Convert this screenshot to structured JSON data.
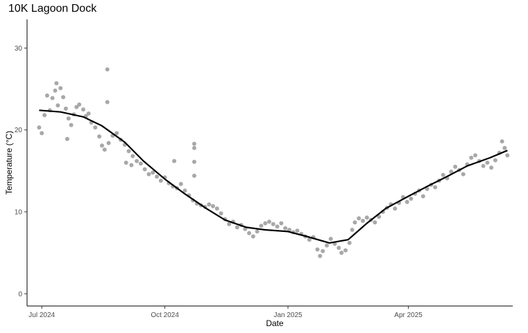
{
  "chart_data": {
    "type": "scatter",
    "title": "10K Lagoon Dock",
    "xlabel": "Date",
    "ylabel": "Temperature (°C)",
    "x_range": [
      "2024-06-20",
      "2025-06-18"
    ],
    "ylim": [
      -1.5,
      33.5
    ],
    "x_ticks": [
      {
        "date": "2024-07-01",
        "label": "Jul 2024"
      },
      {
        "date": "2024-10-01",
        "label": "Oct 2024"
      },
      {
        "date": "2025-01-01",
        "label": "Jan 2025"
      },
      {
        "date": "2025-04-01",
        "label": "Apr 2025"
      }
    ],
    "y_ticks": [
      0,
      10,
      20,
      30
    ],
    "grid": false,
    "legend": "none",
    "point_color": "#999999",
    "line_color": "#000000",
    "series": [
      {
        "kind": "observations",
        "points": [
          [
            "2024-06-29",
            20.3
          ],
          [
            "2024-07-01",
            19.6
          ],
          [
            "2024-07-03",
            21.8
          ],
          [
            "2024-07-05",
            24.2
          ],
          [
            "2024-07-07",
            22.4
          ],
          [
            "2024-07-09",
            23.9
          ],
          [
            "2024-07-11",
            24.8
          ],
          [
            "2024-07-13",
            23.0
          ],
          [
            "2024-07-15",
            25.1
          ],
          [
            "2024-07-17",
            24.0
          ],
          [
            "2024-07-19",
            22.6
          ],
          [
            "2024-07-21",
            21.4
          ],
          [
            "2024-07-23",
            20.6
          ],
          [
            "2024-07-25",
            21.9
          ],
          [
            "2024-07-27",
            22.8
          ],
          [
            "2024-07-29",
            23.1
          ],
          [
            "2024-08-01",
            22.5
          ],
          [
            "2024-08-03",
            21.7
          ],
          [
            "2024-08-05",
            22.0
          ],
          [
            "2024-08-07",
            20.9
          ],
          [
            "2024-08-10",
            20.3
          ],
          [
            "2024-08-13",
            19.2
          ],
          [
            "2024-08-15",
            18.1
          ],
          [
            "2024-08-17",
            17.6
          ],
          [
            "2024-08-20",
            18.4
          ],
          [
            "2024-08-23",
            19.3
          ],
          [
            "2024-08-26",
            19.6
          ],
          [
            "2024-08-29",
            18.8
          ],
          [
            "2024-09-01",
            18.2
          ],
          [
            "2024-09-04",
            17.4
          ],
          [
            "2024-09-07",
            16.8
          ],
          [
            "2024-09-10",
            16.2
          ],
          [
            "2024-09-13",
            15.9
          ],
          [
            "2024-09-16",
            15.2
          ],
          [
            "2024-09-19",
            14.6
          ],
          [
            "2024-09-22",
            14.8
          ],
          [
            "2024-09-25",
            14.3
          ],
          [
            "2024-09-28",
            13.8
          ],
          [
            "2024-10-01",
            14.2
          ],
          [
            "2024-10-04",
            13.5
          ],
          [
            "2024-10-07",
            13.1
          ],
          [
            "2024-10-10",
            12.9
          ],
          [
            "2024-10-13",
            13.4
          ],
          [
            "2024-10-16",
            12.6
          ],
          [
            "2024-10-19",
            12.0
          ],
          [
            "2024-10-22",
            11.4
          ],
          [
            "2024-10-25",
            11.0
          ],
          [
            "2024-10-28",
            10.8
          ],
          [
            "2024-10-31",
            10.6
          ],
          [
            "2024-11-03",
            10.9
          ],
          [
            "2024-11-06",
            10.7
          ],
          [
            "2024-11-09",
            10.4
          ],
          [
            "2024-11-12",
            9.8
          ],
          [
            "2024-11-15",
            9.1
          ],
          [
            "2024-11-18",
            8.5
          ],
          [
            "2024-11-21",
            8.8
          ],
          [
            "2024-11-24",
            8.1
          ],
          [
            "2024-11-27",
            8.4
          ],
          [
            "2024-11-30",
            7.9
          ],
          [
            "2024-12-03",
            7.4
          ],
          [
            "2024-12-06",
            7.0
          ],
          [
            "2024-12-09",
            7.6
          ],
          [
            "2024-12-12",
            8.3
          ],
          [
            "2024-12-15",
            8.6
          ],
          [
            "2024-12-18",
            8.8
          ],
          [
            "2024-12-21",
            8.5
          ],
          [
            "2024-12-24",
            8.2
          ],
          [
            "2024-12-27",
            8.6
          ],
          [
            "2024-12-30",
            8.0
          ],
          [
            "2025-01-02",
            7.8
          ],
          [
            "2025-01-05",
            7.5
          ],
          [
            "2025-01-08",
            7.7
          ],
          [
            "2025-01-11",
            7.3
          ],
          [
            "2025-01-14",
            7.0
          ],
          [
            "2025-01-17",
            6.6
          ],
          [
            "2025-01-20",
            6.9
          ],
          [
            "2025-01-23",
            5.4
          ],
          [
            "2025-01-25",
            4.6
          ],
          [
            "2025-01-27",
            5.2
          ],
          [
            "2025-01-30",
            5.9
          ],
          [
            "2025-02-02",
            6.7
          ],
          [
            "2025-02-05",
            6.1
          ],
          [
            "2025-02-08",
            5.6
          ],
          [
            "2025-02-10",
            5.0
          ],
          [
            "2025-02-13",
            5.3
          ],
          [
            "2025-02-16",
            6.2
          ],
          [
            "2025-02-18",
            7.8
          ],
          [
            "2025-02-20",
            8.7
          ],
          [
            "2025-02-23",
            9.2
          ],
          [
            "2025-02-26",
            8.9
          ],
          [
            "2025-03-01",
            9.3
          ],
          [
            "2025-03-04",
            9.0
          ],
          [
            "2025-03-07",
            8.7
          ],
          [
            "2025-03-10",
            9.4
          ],
          [
            "2025-03-13",
            10.0
          ],
          [
            "2025-03-16",
            10.5
          ],
          [
            "2025-03-19",
            10.9
          ],
          [
            "2025-03-22",
            10.4
          ],
          [
            "2025-03-25",
            11.1
          ],
          [
            "2025-03-28",
            11.8
          ],
          [
            "2025-03-31",
            11.2
          ],
          [
            "2025-04-03",
            11.6
          ],
          [
            "2025-04-06",
            12.2
          ],
          [
            "2025-04-09",
            12.6
          ],
          [
            "2025-04-12",
            11.9
          ],
          [
            "2025-04-15",
            12.8
          ],
          [
            "2025-04-18",
            13.3
          ],
          [
            "2025-04-21",
            13.0
          ],
          [
            "2025-04-24",
            13.8
          ],
          [
            "2025-04-27",
            14.5
          ],
          [
            "2025-04-30",
            14.1
          ],
          [
            "2025-05-03",
            14.9
          ],
          [
            "2025-05-06",
            15.5
          ],
          [
            "2025-05-09",
            15.1
          ],
          [
            "2025-05-12",
            14.6
          ],
          [
            "2025-05-15",
            15.8
          ],
          [
            "2025-05-18",
            16.6
          ],
          [
            "2025-05-21",
            16.9
          ],
          [
            "2025-05-24",
            16.2
          ],
          [
            "2025-05-27",
            15.6
          ],
          [
            "2025-05-30",
            16.0
          ],
          [
            "2025-06-02",
            15.4
          ],
          [
            "2025-06-05",
            16.3
          ],
          [
            "2025-06-08",
            17.2
          ],
          [
            "2025-06-10",
            18.6
          ],
          [
            "2025-06-12",
            17.8
          ],
          [
            "2025-06-14",
            16.9
          ],
          [
            "2024-07-12",
            25.7
          ],
          [
            "2024-07-20",
            18.9
          ],
          [
            "2024-08-19",
            27.4
          ],
          [
            "2024-08-19",
            23.4
          ],
          [
            "2024-09-02",
            16.0
          ],
          [
            "2024-09-06",
            15.7
          ],
          [
            "2024-10-08",
            16.2
          ],
          [
            "2024-10-23",
            18.3
          ],
          [
            "2024-10-23",
            17.8
          ],
          [
            "2024-10-23",
            16.1
          ],
          [
            "2024-10-23",
            14.4
          ]
        ]
      },
      {
        "kind": "smooth",
        "points": [
          [
            "2024-06-29",
            22.4
          ],
          [
            "2024-07-15",
            22.2
          ],
          [
            "2024-08-01",
            21.6
          ],
          [
            "2024-08-15",
            20.5
          ],
          [
            "2024-09-01",
            18.5
          ],
          [
            "2024-09-15",
            16.2
          ],
          [
            "2024-10-01",
            14.0
          ],
          [
            "2024-10-15",
            12.3
          ],
          [
            "2024-11-01",
            10.4
          ],
          [
            "2024-11-15",
            9.0
          ],
          [
            "2024-12-01",
            8.1
          ],
          [
            "2024-12-15",
            7.8
          ],
          [
            "2025-01-01",
            7.6
          ],
          [
            "2025-01-15",
            7.0
          ],
          [
            "2025-02-01",
            6.2
          ],
          [
            "2025-02-15",
            6.6
          ],
          [
            "2025-03-01",
            8.6
          ],
          [
            "2025-03-15",
            10.4
          ],
          [
            "2025-04-01",
            11.9
          ],
          [
            "2025-04-15",
            13.1
          ],
          [
            "2025-05-01",
            14.4
          ],
          [
            "2025-05-15",
            15.6
          ],
          [
            "2025-06-01",
            16.6
          ],
          [
            "2025-06-14",
            17.5
          ]
        ]
      }
    ]
  }
}
